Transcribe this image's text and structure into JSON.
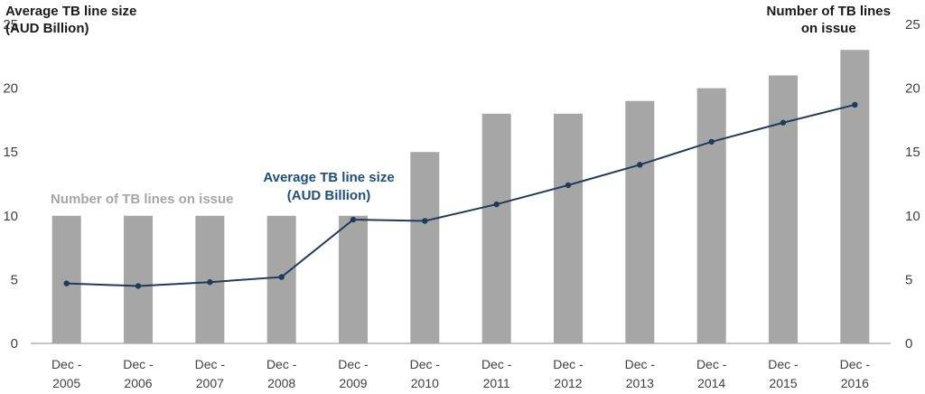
{
  "chart_data": {
    "type": "bar",
    "categories": [
      [
        "Dec -",
        "2005"
      ],
      [
        "Dec -",
        "2006"
      ],
      [
        "Dec -",
        "2007"
      ],
      [
        "Dec -",
        "2008"
      ],
      [
        "Dec -",
        "2009"
      ],
      [
        "Dec -",
        "2010"
      ],
      [
        "Dec -",
        "2011"
      ],
      [
        "Dec -",
        "2012"
      ],
      [
        "Dec -",
        "2013"
      ],
      [
        "Dec -",
        "2014"
      ],
      [
        "Dec -",
        "2015"
      ],
      [
        "Dec -",
        "2016"
      ]
    ],
    "series": [
      {
        "name": "Number of TB lines on issue",
        "type": "bar",
        "axis": "right",
        "color": "#a6a6a6",
        "values": [
          10,
          10,
          10,
          10,
          10,
          15,
          18,
          18,
          19,
          20,
          21,
          23
        ]
      },
      {
        "name": "Average TB line size (AUD Billion)",
        "type": "line",
        "axis": "left",
        "color": "#1f3b5a",
        "values": [
          4.7,
          4.5,
          4.8,
          5.2,
          9.7,
          9.6,
          10.9,
          12.4,
          14.0,
          15.8,
          17.3,
          18.7
        ]
      }
    ],
    "ylim_left": [
      0,
      25
    ],
    "ylim_right": [
      0,
      25
    ],
    "yticks": [
      0,
      5,
      10,
      15,
      20,
      25
    ],
    "left_axis_title": [
      "Average TB line size",
      "(AUD Billion)"
    ],
    "right_axis_title": [
      "Number of TB lines",
      "on issue"
    ],
    "annotations": {
      "bars_label": "Number of TB lines on issue",
      "line_label": [
        "Average TB line size",
        "(AUD Billion)"
      ]
    },
    "grid": false
  }
}
